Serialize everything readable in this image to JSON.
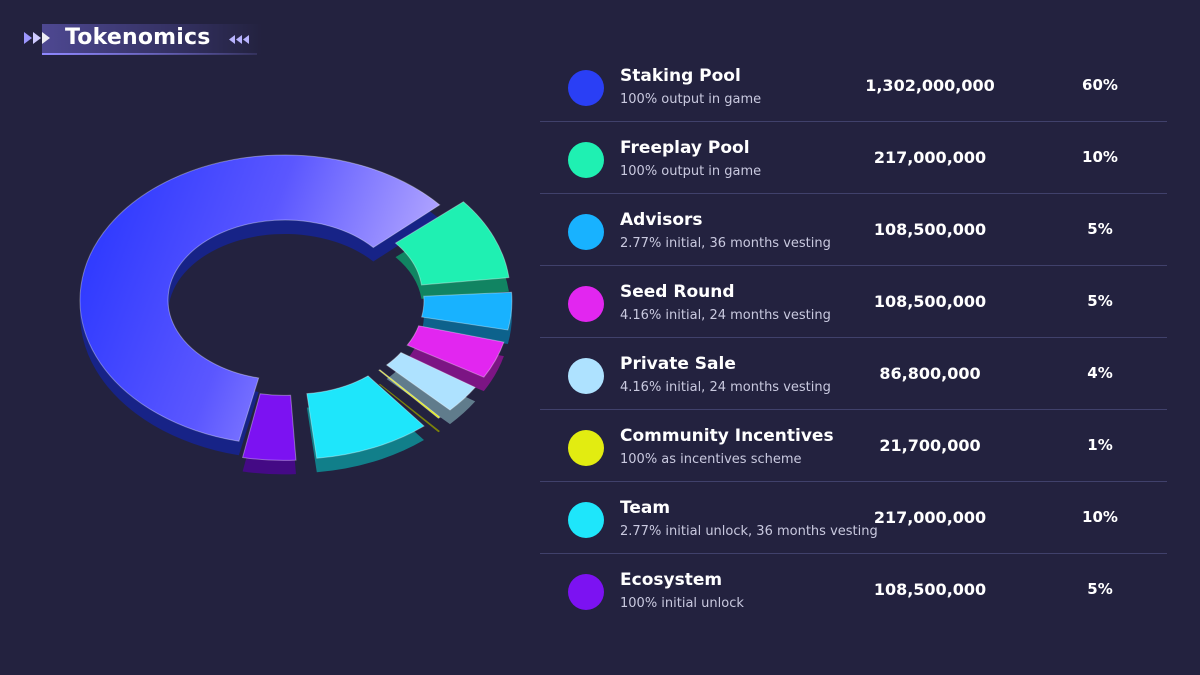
{
  "header": {
    "title": "Tokenomics"
  },
  "colors": {
    "background": "#23223f",
    "accent": "#8f88ff"
  },
  "chart_data": {
    "type": "pie",
    "style": "3d-donut, exploded segments",
    "unit": "tokens",
    "slices": [
      {
        "name": "Staking Pool",
        "description": "100% output in game",
        "amount": "1,302,000,000",
        "value": 1302000000,
        "percent": "60%",
        "percent_value": 60,
        "color": "#2a3ff5"
      },
      {
        "name": "Freeplay Pool",
        "description": "100% output in game",
        "amount": "217,000,000",
        "value": 217000000,
        "percent": "10%",
        "percent_value": 10,
        "color": "#1ff0b2"
      },
      {
        "name": "Advisors",
        "description": "2.77% initial, 36 months vesting",
        "amount": "108,500,000",
        "value": 108500000,
        "percent": "5%",
        "percent_value": 5,
        "color": "#18b2ff"
      },
      {
        "name": "Seed Round",
        "description": "4.16% initial, 24 months vesting",
        "amount": "108,500,000",
        "value": 108500000,
        "percent": "5%",
        "percent_value": 5,
        "color": "#e226f0"
      },
      {
        "name": "Private Sale",
        "description": "4.16% initial, 24 months vesting",
        "amount": "86,800,000",
        "value": 86800000,
        "percent": "4%",
        "percent_value": 4,
        "color": "#aee2ff"
      },
      {
        "name": "Community Incentives",
        "description": "100% as incentives scheme",
        "amount": "21,700,000",
        "value": 21700000,
        "percent": "1%",
        "percent_value": 1,
        "color": "#e2ec11"
      },
      {
        "name": "Team",
        "description": "2.77% initial unlock, 36 months vesting",
        "amount": "217,000,000",
        "value": 217000000,
        "percent": "10%",
        "percent_value": 10,
        "color": "#1ee6fb"
      },
      {
        "name": "Ecosystem",
        "description": "100% initial unlock",
        "amount": "108,500,000",
        "value": 108500000,
        "percent": "5%",
        "percent_value": 5,
        "color": "#7c12f2"
      }
    ]
  }
}
